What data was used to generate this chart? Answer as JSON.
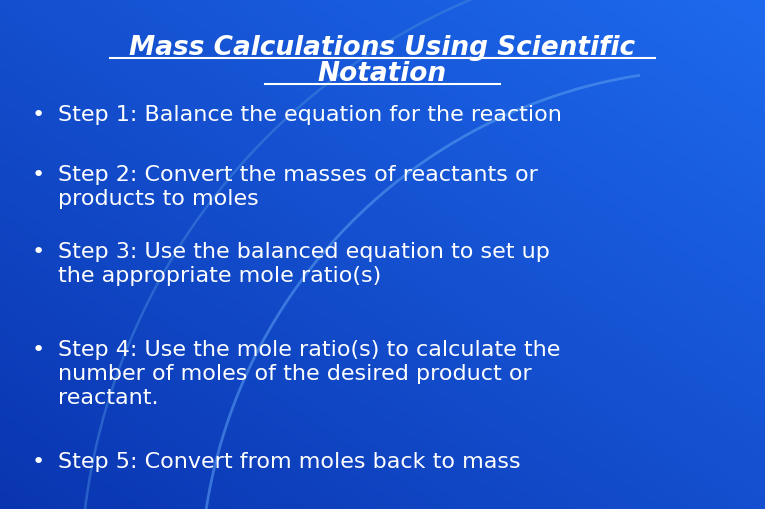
{
  "title_line1": "Mass Calculations Using Scientific",
  "title_line2": "Notation",
  "bg_color": "#1a50d0",
  "bg_gradient_colors": [
    "#0a35b0",
    "#1a60e0",
    "#1a70e8"
  ],
  "text_color": "#ffffff",
  "bullet_items": [
    "Step 1: Balance the equation for the reaction",
    "Step 2: Convert the masses of reactants or\nproducts to moles",
    "Step 3: Use the balanced equation to set up\nthe appropriate mole ratio(s)",
    "Step 4: Use the mole ratio(s) to calculate the\nnumber of moles of the desired product or\nreactant.",
    "Step 5: Convert from moles back to mass"
  ],
  "title_fontsize": 19,
  "bullet_fontsize": 16,
  "bullet_char": "•",
  "figsize": [
    7.65,
    5.1
  ],
  "dpi": 100,
  "arc_color": "#4488ee",
  "arc_color2": "#3377dd"
}
